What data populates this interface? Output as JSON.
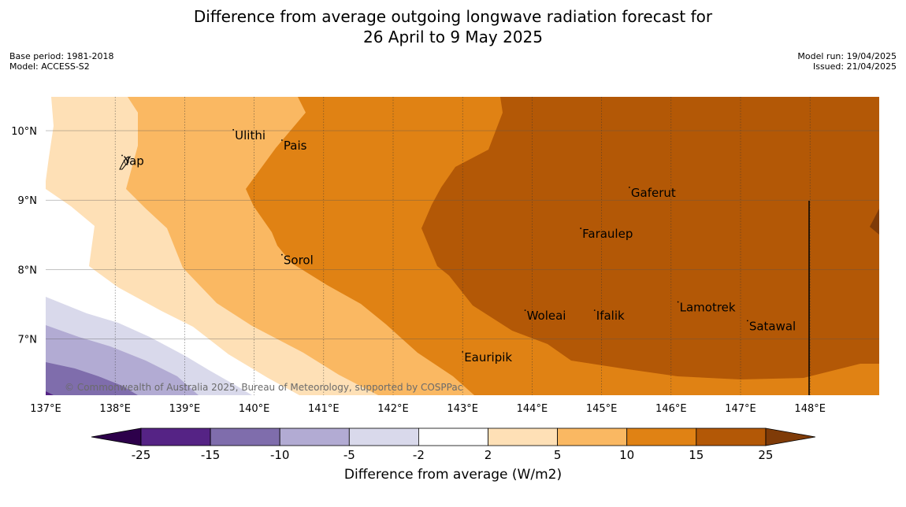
{
  "header": {
    "title_line1": "Difference from average outgoing longwave radiation forecast for",
    "title_line2": "26 April to 9 May 2025"
  },
  "meta_left": [
    "Base period: 1981-2018",
    "Model: ACCESS-S2"
  ],
  "meta_right": [
    "Model run: 19/04/2025",
    "Issued: 21/04/2025"
  ],
  "map": {
    "lon_range": [
      137,
      149
    ],
    "lat_range": [
      6.2,
      10.5
    ],
    "lon_ticks": [
      "137°E",
      "138°E",
      "139°E",
      "140°E",
      "141°E",
      "142°E",
      "143°E",
      "144°E",
      "145°E",
      "146°E",
      "147°E",
      "148°E"
    ],
    "lat_ticks": [
      "10°N",
      "9°N",
      "8°N",
      "7°N"
    ],
    "places": [
      {
        "name": "Ulithi",
        "lon": 139.7,
        "lat": 9.9
      },
      {
        "name": "Pais",
        "lon": 140.4,
        "lat": 9.75
      },
      {
        "name": "Yap",
        "lon": 138.1,
        "lat": 9.53
      },
      {
        "name": "Gaferut",
        "lon": 145.4,
        "lat": 9.07
      },
      {
        "name": "Faraulep",
        "lon": 144.7,
        "lat": 8.48
      },
      {
        "name": "Sorol",
        "lon": 140.4,
        "lat": 8.1
      },
      {
        "name": "Lamotrek",
        "lon": 146.1,
        "lat": 7.42
      },
      {
        "name": "Woleai",
        "lon": 143.9,
        "lat": 7.3
      },
      {
        "name": "Ifalik",
        "lon": 144.9,
        "lat": 7.3
      },
      {
        "name": "Satawal",
        "lon": 147.1,
        "lat": 7.15
      },
      {
        "name": "Eauripik",
        "lon": 143.0,
        "lat": 6.7
      }
    ],
    "copyright": "© Commonwealth of Australia 2025, Bureau of Meteorology, supported by COSPPac"
  },
  "colorbar": {
    "labels": [
      "-25",
      "-15",
      "-10",
      "-5",
      "-2",
      "2",
      "5",
      "10",
      "15",
      "25"
    ],
    "colors": [
      "#552385",
      "#7f6dac",
      "#b2abd3",
      "#d9d9eb",
      "#ffffff",
      "#fee0b6",
      "#fab862",
      "#e08214",
      "#b35806"
    ],
    "under_color": "#2d004b",
    "over_color": "#7f3b08",
    "title": "Difference from average (W/m2)"
  }
}
